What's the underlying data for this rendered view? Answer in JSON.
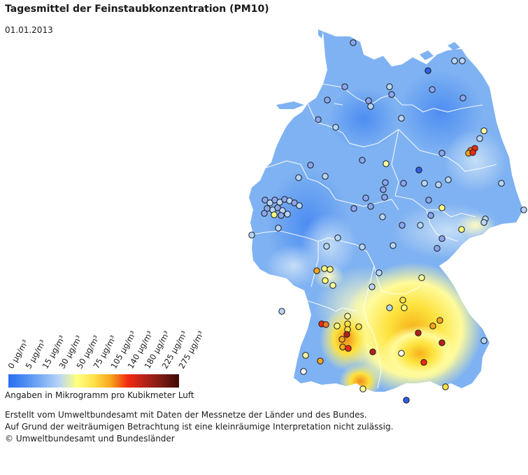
{
  "header": {
    "title": "Tagesmittel der Feinstaubkonzentration (PM10)",
    "date": "01.01.2013"
  },
  "legend": {
    "labels": [
      "0 µg/m³",
      "5 µg/m³",
      "15 µg/m³",
      "30 µg/m³",
      "50 µg/m³",
      "75 µg/m³",
      "105 µg/m³",
      "140 µg/m³",
      "180 µg/m³",
      "225 µg/m³",
      "275 µg/m³"
    ],
    "colors": [
      "#2a6ff0",
      "#4d8df2",
      "#7fb0f4",
      "#b8d6f6",
      "#ffff80",
      "#ffe14a",
      "#f7a51c",
      "#f22a10",
      "#b5221a",
      "#7a1c12",
      "#3d0a06"
    ],
    "unit_note": "Angaben in Mikrogramm pro Kubikmeter Luft"
  },
  "footer": {
    "line1": "Erstellt vom Umweltbundesamt mit Daten der Messnetze der Länder und des Bundes.",
    "line2": "Auf Grund der weiträumigen Betrachtung ist eine kleinräumige Interpretation nicht zulässig.",
    "line3": "© Umweltbundesamt und Bundesländer"
  },
  "map_colors": {
    "background_low": "#7fb2f2",
    "border": "#ffffff",
    "station_stroke": "#1a1a1a"
  }
}
